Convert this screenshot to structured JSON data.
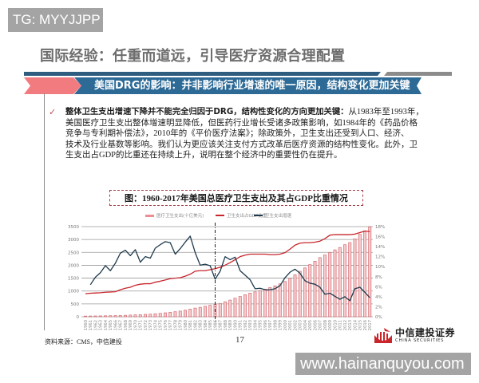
{
  "watermarks": {
    "top_left": "TG: MYYJJPP",
    "bottom_right": "www.hainanquyou.com"
  },
  "slide": {
    "title": "国际经验：任重而道远，引导医疗资源合理配置",
    "banner": "美国DRG的影响：并非影响行业增速的唯一原因，结构变化更加关键",
    "bullet_icon": "check-icon",
    "paragraph": {
      "lines": [
        {
          "bold": "整体卫生支出增速下降并不能完全归因于DRG，结构性变化的方向更加关键：",
          "text": "从1983年至1993年，"
        },
        {
          "text": "美国医疗卫生支出整体增速明显降低，但医药行业增长受诸多政策影响，如1984年的《药品价格"
        },
        {
          "text": "竞争与专利期补偿法》，2010年的《平价医疗法案》；除政策外，卫生支出还受到人口、经济、"
        },
        {
          "text": "技术及行业基数等影响。我们认为更应该关注支付方式改革后医疗资源的结构性变化。此外，卫"
        },
        {
          "text": "生支出占GDP的比重还在持续上升，说明在整个经济中的重要性仍在提升。"
        }
      ]
    },
    "source": "资料来源：CMS，中信建投",
    "page_number": "17",
    "logo": {
      "cn": "中信建投证券",
      "en": "CHINA SECURITIES",
      "icon": "china-securities-emblem-icon"
    }
  },
  "colors": {
    "banner_blue": "#2d6a96",
    "stripe_blue": "#2e5d80",
    "ribbon_pink": "#f27b80",
    "bar_fill": "#f5cbcd",
    "bar_stroke": "#d46a70",
    "gdp_line": "#c8262c",
    "growth_line": "#1e3a4c",
    "grid": "#9a9a9a"
  },
  "chart_data": {
    "type": "bar",
    "title": "图：1960-2017年美国总医疗卫生支出及其占GDP比重情况",
    "xlabel": "",
    "ylabel": "",
    "x": [
      "1960",
      "1961",
      "1962",
      "1963",
      "1964",
      "1965",
      "1966",
      "1967",
      "1968",
      "1969",
      "1970",
      "1971",
      "1972",
      "1973",
      "1974",
      "1975",
      "1976",
      "1977",
      "1978",
      "1979",
      "1980",
      "1981",
      "1982",
      "1983",
      "1984",
      "1985",
      "1986",
      "1987",
      "1988",
      "1989",
      "1990",
      "1991",
      "1992",
      "1993",
      "1994",
      "1995",
      "1996",
      "1997",
      "1998",
      "1999",
      "2000",
      "2001",
      "2002",
      "2003",
      "2004",
      "2005",
      "2006",
      "2007",
      "2008",
      "2009",
      "2010",
      "2011",
      "2012",
      "2013",
      "2014",
      "2015",
      "2016",
      "2017"
    ],
    "series": [
      {
        "name": "医疗卫生支出(十亿美元)",
        "type": "bar",
        "axis": "left",
        "values": [
          27,
          29,
          32,
          35,
          38,
          42,
          46,
          52,
          58,
          66,
          75,
          83,
          93,
          103,
          117,
          133,
          153,
          174,
          196,
          222,
          255,
          296,
          335,
          369,
          407,
          445,
          477,
          519,
          582,
          648,
          721,
          788,
          854,
          917,
          967,
          1022,
          1074,
          1136,
          1202,
          1278,
          1370,
          1487,
          1629,
          1768,
          1896,
          2024,
          2157,
          2296,
          2399,
          2495,
          2599,
          2689,
          2797,
          2880,
          3026,
          3201,
          3337,
          3492
        ]
      },
      {
        "name": "卫生支出占GDP比重",
        "type": "line",
        "axis": "right",
        "unit": "%",
        "values": [
          4.6,
          4.7,
          4.75,
          4.8,
          4.9,
          4.95,
          5.0,
          5.4,
          5.7,
          5.9,
          6.3,
          6.5,
          6.6,
          6.6,
          6.9,
          7.1,
          7.35,
          7.6,
          7.7,
          7.8,
          8.1,
          8.5,
          9.1,
          9.2,
          9.2,
          9.4,
          9.6,
          9.9,
          10.3,
          10.8,
          11.4,
          12.0,
          12.3,
          12.5,
          12.5,
          12.5,
          12.5,
          12.4,
          12.4,
          12.5,
          12.8,
          13.5,
          14.3,
          14.7,
          14.8,
          14.8,
          14.9,
          15.1,
          15.6,
          16.3,
          16.4,
          16.4,
          16.4,
          16.4,
          16.5,
          16.8,
          17.1,
          17.0
        ]
      },
      {
        "name": "卫生支出增速",
        "type": "line",
        "axis": "right",
        "unit": "%",
        "values": [
          null,
          6.4,
          7.9,
          8.8,
          10.2,
          9.2,
          10.7,
          12.7,
          13.3,
          12.2,
          13.4,
          10.9,
          12.0,
          11.7,
          13.7,
          14.4,
          15.0,
          14.8,
          12.5,
          13.6,
          14.9,
          16.1,
          12.8,
          10.3,
          10.5,
          10.2,
          7.5,
          9.1,
          12.0,
          11.4,
          11.9,
          9.2,
          8.3,
          7.4,
          5.6,
          5.7,
          5.4,
          5.4,
          5.6,
          6.2,
          7.8,
          8.9,
          9.5,
          8.7,
          7.2,
          6.7,
          6.5,
          5.9,
          4.5,
          4.7,
          4.1,
          3.5,
          4.0,
          3.2,
          5.6,
          5.9,
          4.9,
          3.8
        ]
      }
    ],
    "ylim": [
      0,
      3500
    ],
    "y_ticks": [
      "0",
      "500",
      "1000",
      "1500",
      "2000",
      "2500",
      "3000",
      "3500"
    ],
    "y2lim": [
      0,
      18
    ],
    "y2_ticks": [
      "0%",
      "2%",
      "4%",
      "6%",
      "8%",
      "10%",
      "12%",
      "14%",
      "16%",
      "18%"
    ],
    "annotations": [
      {
        "type": "vline",
        "x": "1986",
        "style": "dash-dot"
      }
    ],
    "grid": true,
    "legend_position": "top"
  }
}
